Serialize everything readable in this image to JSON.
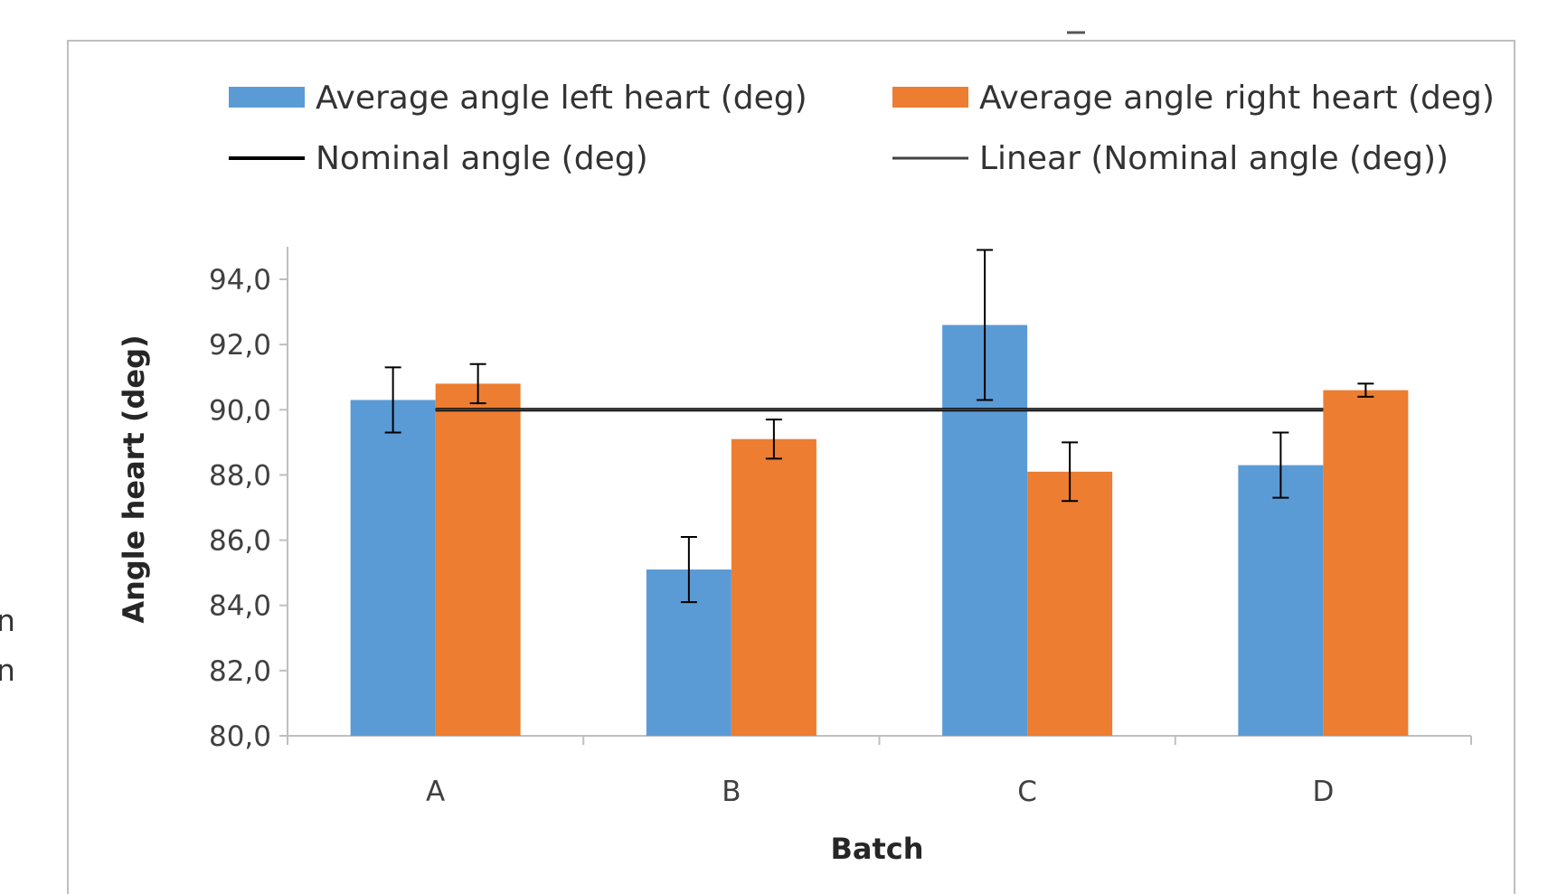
{
  "edge_fragments": [
    "n",
    "n"
  ],
  "chart_data": {
    "type": "bar",
    "title": "",
    "xlabel": "Batch",
    "ylabel": "Angle heart (deg)",
    "categories": [
      "A",
      "B",
      "C",
      "D"
    ],
    "ylim": [
      80,
      94
    ],
    "yticks": [
      "80,0",
      "82,0",
      "84,0",
      "86,0",
      "88,0",
      "90,0",
      "92,0",
      "94,0"
    ],
    "grid": false,
    "legend_position": "top",
    "series": [
      {
        "name": "Average angle left heart (deg)",
        "kind": "bar",
        "color": "#5B9BD5",
        "values": [
          90.3,
          85.1,
          92.6,
          88.3
        ],
        "error": [
          1.0,
          1.0,
          2.3,
          1.0
        ]
      },
      {
        "name": "Average angle right heart (deg)",
        "kind": "bar",
        "color": "#ED7D31",
        "values": [
          90.8,
          89.1,
          88.1,
          90.6
        ],
        "error": [
          0.6,
          0.6,
          0.9,
          0.2
        ]
      },
      {
        "name": "Nominal angle (deg)",
        "kind": "line",
        "color": "#000000",
        "values": [
          90.0,
          90.0,
          90.0,
          90.0
        ]
      },
      {
        "name": "Linear (Nominal angle (deg))",
        "kind": "trendline",
        "color": "#404040",
        "values": [
          90.0,
          90.0,
          90.0,
          90.0
        ]
      }
    ]
  }
}
